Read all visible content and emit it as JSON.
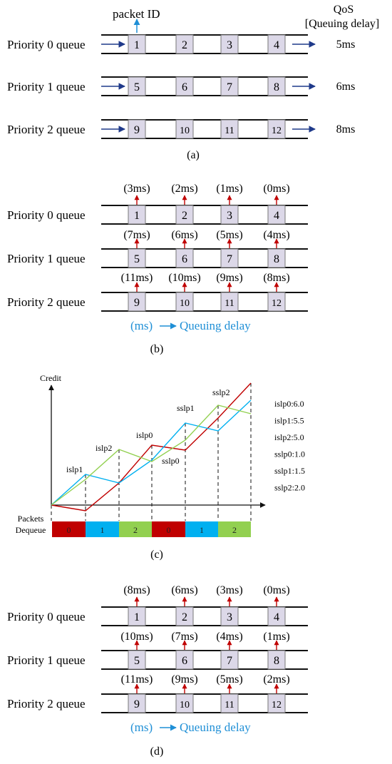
{
  "queue_names": [
    "Priority 0 queue",
    "Priority 1 queue",
    "Priority 2 queue"
  ],
  "panel_a": {
    "caption": "(a)",
    "packet_id_label": "packet ID",
    "qos_label_line1": "QoS",
    "qos_label_line2": "[Queuing delay]",
    "packets": [
      [
        "1",
        "2",
        "3",
        "4"
      ],
      [
        "5",
        "6",
        "7",
        "8"
      ],
      [
        "9",
        "10",
        "11",
        "12"
      ]
    ],
    "qos": [
      "5ms",
      "6ms",
      "8ms"
    ]
  },
  "panel_b": {
    "caption": "(b)",
    "packets": [
      [
        "1",
        "2",
        "3",
        "4"
      ],
      [
        "5",
        "6",
        "7",
        "8"
      ],
      [
        "9",
        "10",
        "11",
        "12"
      ]
    ],
    "delays": [
      [
        "(3ms)",
        "(2ms)",
        "(1ms)",
        "(0ms)"
      ],
      [
        "(7ms)",
        "(6ms)",
        "(5ms)",
        "(4ms)"
      ],
      [
        "(11ms)",
        "(10ms)",
        "(9ms)",
        "(8ms)"
      ]
    ],
    "legend_left": "(ms)",
    "legend_right": "Queuing delay"
  },
  "panel_c": {
    "caption": "(c)",
    "y_label": "Credit",
    "dequeue_label_line1": "Packets",
    "dequeue_label_line2": "Dequeue",
    "dequeue_slots": [
      "0",
      "1",
      "2",
      "0",
      "1",
      "2"
    ],
    "slot_colors": [
      "#c00000",
      "#00b0f0",
      "#92d050",
      "#c00000",
      "#00b0f0",
      "#92d050"
    ],
    "annotations": [
      "islp1",
      "islp2",
      "islp0",
      "sslp0",
      "sslp1",
      "sslp2"
    ],
    "params": [
      "islp0:6.0",
      "islp1:5.5",
      "islp2:5.0",
      "sslp0:1.0",
      "sslp1:1.5",
      "sslp2:2.0"
    ],
    "series_colors": {
      "queue0": "#c00000",
      "queue1": "#00b0f0",
      "queue2": "#92d050"
    }
  },
  "panel_d": {
    "caption": "(d)",
    "packets": [
      [
        "1",
        "2",
        "3",
        "4"
      ],
      [
        "5",
        "6",
        "7",
        "8"
      ],
      [
        "9",
        "10",
        "11",
        "12"
      ]
    ],
    "delays": [
      [
        "(8ms)",
        "(6ms)",
        "(3ms)",
        "(0ms)"
      ],
      [
        "(10ms)",
        "(7ms)",
        "(4ms)",
        "(1ms)"
      ],
      [
        "(11ms)",
        "(9ms)",
        "(5ms)",
        "(2ms)"
      ]
    ],
    "legend_left": "(ms)",
    "legend_right": "Queuing delay"
  },
  "colors": {
    "packet_fill": "#dcd8e8",
    "packet_stroke": "#777777",
    "flow_arrow": "#1f3a8a",
    "legend_blue": "#1f8fd6",
    "delay_arrow": "#c00000"
  }
}
